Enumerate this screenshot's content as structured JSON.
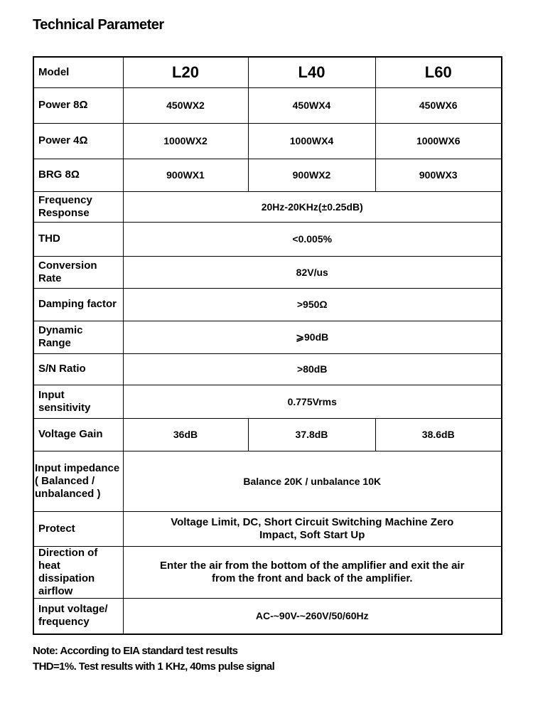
{
  "title": "Technical Parameter",
  "header": {
    "label": "Model",
    "models": [
      "L20",
      "L40",
      "L60"
    ]
  },
  "rows": [
    {
      "label": "Power 8Ω",
      "values": [
        "450WX2",
        "450WX4",
        "450WX6"
      ]
    },
    {
      "label": "Power 4Ω",
      "values": [
        "1000WX2",
        "1000WX4",
        "1000WX6"
      ]
    },
    {
      "label": "BRG 8Ω",
      "values": [
        "900WX1",
        "900WX2",
        "900WX3"
      ]
    },
    {
      "label": "Frequency Response",
      "value": "20Hz-20KHz(±0.25dB)"
    },
    {
      "label": "THD",
      "value": "<0.005%"
    },
    {
      "label": "Conversion Rate",
      "value": "82V/us"
    },
    {
      "label": "Damping factor",
      "value": ">950Ω"
    },
    {
      "label": "Dynamic Range",
      "value": "⩾90dB"
    },
    {
      "label": "S/N Ratio",
      "value": ">80dB"
    },
    {
      "label": "Input sensitivity",
      "value": "0.775Vrms"
    },
    {
      "label": "Voltage Gain",
      "values": [
        "36dB",
        "37.8dB",
        "38.6dB"
      ]
    },
    {
      "label": "Input impedance ( Balanced / unbalanced )",
      "value": "Balance 20K / unbalance 10K"
    },
    {
      "label": "Protect",
      "value": "Voltage Limit, DC, Short Circuit Switching Machine Zero Impact, Soft Start Up"
    },
    {
      "label": "Direction of heat dissipation airflow",
      "value": "Enter the air from the bottom of the amplifier and exit the air from the front and back of the amplifier."
    },
    {
      "label": "Input voltage/ frequency",
      "value": "AC-~90V-~260V/50/60Hz"
    }
  ],
  "note": {
    "line1": "Note: According to EIA standard test results",
    "line2": "THD=1%. Test results with 1 KHz, 40ms pulse signal"
  }
}
